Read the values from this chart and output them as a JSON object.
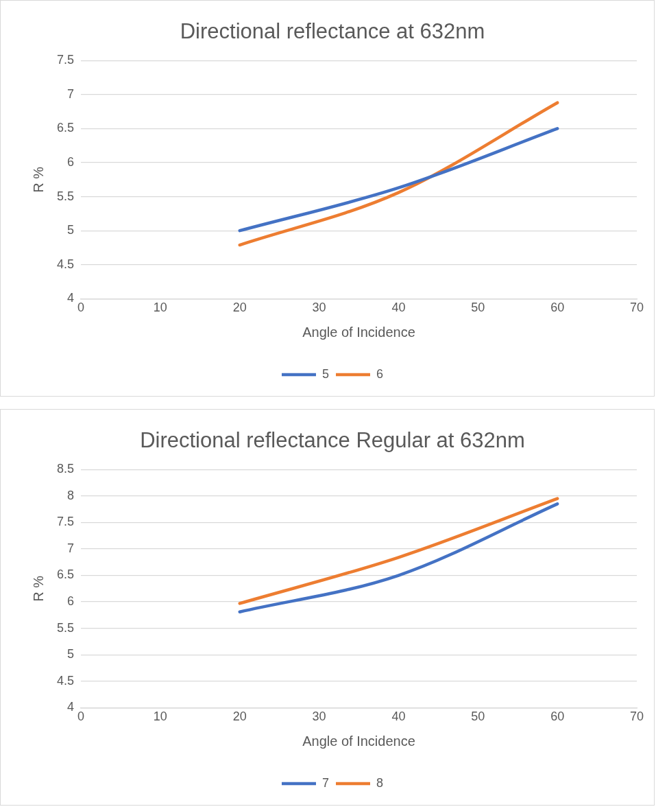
{
  "chart_data": [
    {
      "type": "line",
      "title": "Directional reflectance at 632nm",
      "xlabel": "Angle of Incidence",
      "ylabel": "R %",
      "x": [
        20,
        40,
        60
      ],
      "series": [
        {
          "name": "5",
          "color": "#4472c4",
          "values": [
            5.0,
            5.63,
            6.5
          ]
        },
        {
          "name": "6",
          "color": "#ed7d31",
          "values": [
            4.79,
            5.56,
            6.88
          ]
        }
      ],
      "xlim": [
        0,
        70
      ],
      "xticks": [
        0,
        10,
        20,
        30,
        40,
        50,
        60,
        70
      ],
      "ylim": [
        4,
        7.5
      ],
      "yticks": [
        4,
        4.5,
        5,
        5.5,
        6,
        6.5,
        7,
        7.5
      ],
      "grid": "y",
      "legend": "bottom",
      "marker": "none",
      "line_style": "solid"
    },
    {
      "type": "line",
      "title": "Directional reflectance Regular at 632nm",
      "xlabel": "Angle of Incidence",
      "ylabel": "R %",
      "x": [
        20,
        40,
        60
      ],
      "series": [
        {
          "name": "7",
          "color": "#4472c4",
          "values": [
            5.81,
            6.5,
            7.85
          ]
        },
        {
          "name": "8",
          "color": "#ed7d31",
          "values": [
            5.97,
            6.84,
            7.95
          ]
        }
      ],
      "xlim": [
        0,
        70
      ],
      "xticks": [
        0,
        10,
        20,
        30,
        40,
        50,
        60,
        70
      ],
      "ylim": [
        4,
        8.5
      ],
      "yticks": [
        4,
        4.5,
        5,
        5.5,
        6,
        6.5,
        7,
        7.5,
        8,
        8.5
      ],
      "grid": "y",
      "legend": "bottom",
      "marker": "none",
      "line_style": "solid"
    }
  ]
}
